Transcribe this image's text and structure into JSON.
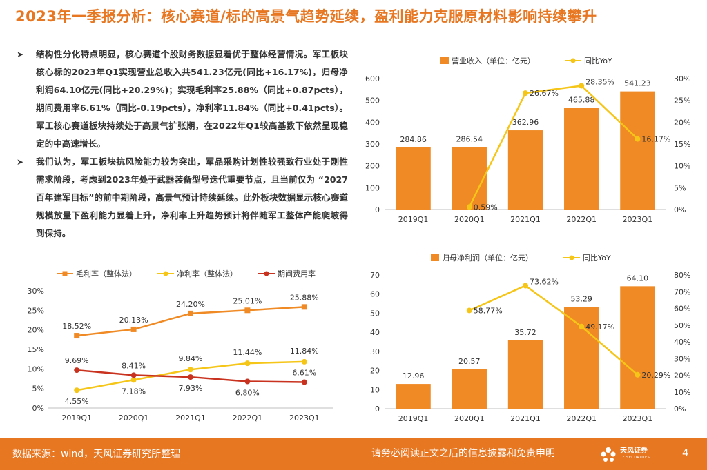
{
  "title": "2023年一季报分析：核心赛道/标的高景气趋势延续，盈利能力克服原材料影响持续攀升",
  "bullets": [
    "结构性分化特点明显，核心赛道个股财务数据显着优于整体经营情况。军工板块核心标的2023年Q1实现营业总收入共541.23亿元(同比+16.17%)，归母净利润64.10亿元(同比+20.29%)；实现毛利率25.88%（同比+0.87pcts），期间费用率6.61%（同比-0.19pcts），净利率11.84%（同比+0.41pcts）。军工核心赛道板块持续处于高景气扩张期，在2022年Q1较高基数下依然呈现稳定的中高速增长。",
    "我们认为，军工板块抗风险能力较为突出，军品采购计划性较强致行业处于刚性需求阶段，考虑到2023年处于武器装备型号迭代重要节点，且当前仅为 “2027百年建军目标”的前中期阶段，高景气预计持续延续。此外板块数据显示核心赛道规模放量下盈利能力显着上升，净利率上升趋势预计将伴随军工整体产能爬坡得到保持。"
  ],
  "chart_data": [
    {
      "id": "revenue",
      "type": "bar",
      "categories": [
        "2019Q1",
        "2020Q1",
        "2021Q1",
        "2022Q1",
        "2023Q1"
      ],
      "series": [
        {
          "name": "营业收入（单位：亿元）",
          "kind": "bar",
          "axis": "left",
          "values": [
            284.86,
            286.54,
            362.96,
            465.88,
            541.23
          ],
          "labels": [
            "284.86",
            "286.54",
            "362.96",
            "465.88",
            "541.23"
          ]
        },
        {
          "name": "同比YoY",
          "kind": "line",
          "axis": "right",
          "values": [
            null,
            0.59,
            26.67,
            28.35,
            16.17
          ],
          "labels": [
            "",
            "0.59%",
            "26.67%",
            "28.35%",
            "16.17%"
          ]
        }
      ],
      "ylim": [
        0,
        600
      ],
      "yticks": [
        "0",
        "100",
        "200",
        "300",
        "400",
        "500",
        "600"
      ],
      "y2lim": [
        0,
        30
      ],
      "y2ticks": [
        "0%",
        "5%",
        "10%",
        "15%",
        "20%",
        "25%",
        "30%"
      ]
    },
    {
      "id": "netprofit",
      "type": "bar",
      "categories": [
        "2019Q1",
        "2020Q1",
        "2021Q1",
        "2022Q1",
        "2023Q1"
      ],
      "series": [
        {
          "name": "归母净利润（单位：亿元）",
          "kind": "bar",
          "axis": "left",
          "values": [
            12.96,
            20.57,
            35.72,
            53.29,
            64.1
          ],
          "labels": [
            "12.96",
            "20.57",
            "35.72",
            "53.29",
            "64.10"
          ]
        },
        {
          "name": "同比YoY",
          "kind": "line",
          "axis": "right",
          "values": [
            null,
            58.77,
            73.62,
            49.17,
            20.29
          ],
          "labels": [
            "",
            "58.77%",
            "73.62%",
            "49.17%",
            "20.29%"
          ]
        }
      ],
      "ylim": [
        0,
        70
      ],
      "yticks": [
        "0",
        "10",
        "20",
        "30",
        "40",
        "50",
        "60",
        "70"
      ],
      "y2lim": [
        0,
        80
      ],
      "y2ticks": [
        "0%",
        "10%",
        "20%",
        "30%",
        "40%",
        "50%",
        "60%",
        "70%",
        "80%"
      ]
    },
    {
      "id": "margins",
      "type": "line",
      "categories": [
        "2019Q1",
        "2020Q1",
        "2021Q1",
        "2022Q1",
        "2023Q1"
      ],
      "series": [
        {
          "name": "毛利率（整体法）",
          "values": [
            18.52,
            20.13,
            24.2,
            25.01,
            25.88
          ],
          "labels": [
            "18.52%",
            "20.13%",
            "24.20%",
            "25.01%",
            "25.88%"
          ]
        },
        {
          "name": "净利率（整体法）",
          "values": [
            4.55,
            7.18,
            9.84,
            11.44,
            11.84
          ],
          "labels": [
            "4.55%",
            "7.18%",
            "9.84%",
            "11.44%",
            "11.84%"
          ]
        },
        {
          "name": "期间费用率",
          "values": [
            9.69,
            8.41,
            7.93,
            6.8,
            6.61
          ],
          "labels": [
            "9.69%",
            "8.41%",
            "7.93%",
            "6.80%",
            "6.61%"
          ]
        }
      ],
      "ylim": [
        0,
        30
      ],
      "yticks": [
        "0%",
        "5%",
        "10%",
        "15%",
        "20%",
        "25%",
        "30%"
      ]
    }
  ],
  "footer": {
    "source": "数据来源：wind，天风证券研究所整理",
    "disclaimer": "请务必阅读正文之后的信息披露和免责申明",
    "brand": "天风证券",
    "brand_sub": "TF SECURITIES",
    "page": "4"
  },
  "colors": {
    "accent": "#e87722",
    "bar": "#f08a24",
    "yoy": "#f5c518",
    "gross": "#f08a24",
    "net": "#f5c518",
    "expense": "#c8321e",
    "axis": "#bfbfbf",
    "text": "#333333"
  }
}
